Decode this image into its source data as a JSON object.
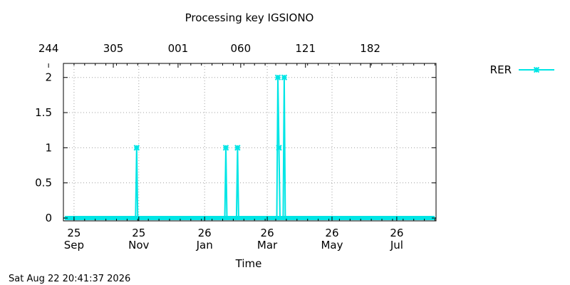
{
  "chart_data": {
    "type": "line",
    "title": "Processing key IGSIONO",
    "xlabel": "Time",
    "ylabel": "",
    "x_axis": "date",
    "xlim": [
      "2025-09-15",
      "2026-09-01"
    ],
    "ylim": [
      0,
      2.2
    ],
    "y_ticks": [
      0,
      0.5,
      1,
      1.5,
      2
    ],
    "y_tick_labels": [
      "0",
      "0.5",
      "1",
      "1.5",
      "2"
    ],
    "x_ticks_bottom": [
      {
        "date": "2025-09-25",
        "label1": "25",
        "label2": "Sep"
      },
      {
        "date": "2025-11-25",
        "label1": "25",
        "label2": "Nov"
      },
      {
        "date": "2026-01-26",
        "label1": "26",
        "label2": "Jan"
      },
      {
        "date": "2026-03-26",
        "label1": "26",
        "label2": "Mar"
      },
      {
        "date": "2026-05-26",
        "label1": "26",
        "label2": "May"
      },
      {
        "date": "2026-07-26",
        "label1": "26",
        "label2": "Jul"
      }
    ],
    "x_ticks_top": [
      {
        "date": "2025-09-01",
        "label": "244"
      },
      {
        "date": "2025-11-01",
        "label": "305"
      },
      {
        "date": "2026-01-01",
        "label": "001"
      },
      {
        "date": "2026-03-01",
        "label": "060"
      },
      {
        "date": "2026-05-01",
        "label": "121"
      },
      {
        "date": "2026-07-01",
        "label": "182"
      }
    ],
    "grid": true,
    "legend": "top-right",
    "series": [
      {
        "name": "RER",
        "color": "#00e5e5",
        "marker": "asterisk",
        "points": [
          [
            "2025-09-15",
            0
          ],
          [
            "2025-11-22",
            0
          ],
          [
            "2025-11-23",
            1
          ],
          [
            "2025-11-24",
            0
          ],
          [
            "2026-02-14",
            0
          ],
          [
            "2026-02-15",
            1
          ],
          [
            "2026-02-16",
            0
          ],
          [
            "2026-02-25",
            0
          ],
          [
            "2026-02-26",
            1
          ],
          [
            "2026-02-27",
            0
          ],
          [
            "2026-04-04",
            0
          ],
          [
            "2026-04-05",
            2
          ],
          [
            "2026-04-06",
            1
          ],
          [
            "2026-04-07",
            0
          ],
          [
            "2026-04-10",
            0
          ],
          [
            "2026-04-11",
            2
          ],
          [
            "2026-04-12",
            0
          ],
          [
            "2026-09-01",
            0
          ]
        ]
      }
    ]
  },
  "timestamp": "Sat Aug 22 20:41:37 2026"
}
